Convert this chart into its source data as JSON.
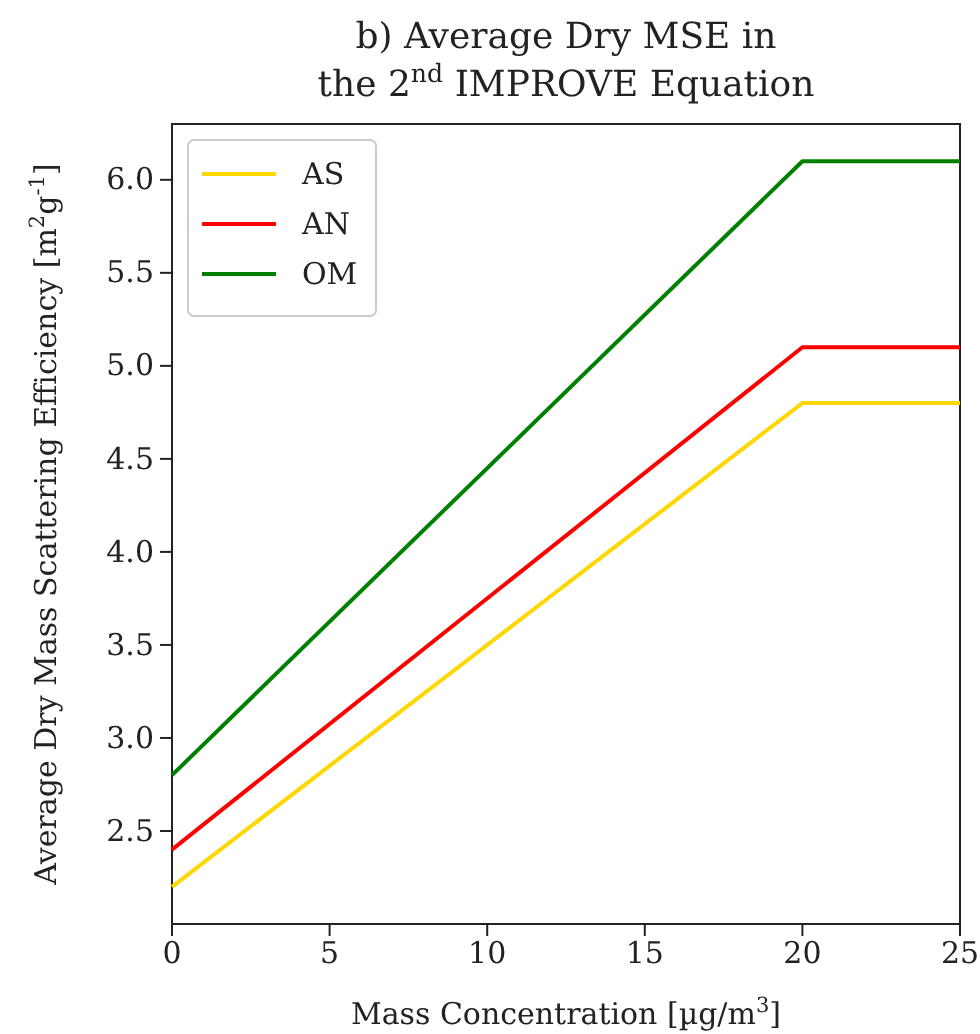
{
  "chart_data": {
    "type": "line",
    "title": "b) Average Dry MSE in\nthe 2$^{nd}$ IMPROVE Equation",
    "xlabel": "Mass Concentration [µg/m$^{3}$]",
    "ylabel": "Average Dry Mass Scattering Efficiency [m$^{2}$g$^{-1}$]",
    "x": [
      0,
      20,
      25
    ],
    "series": [
      {
        "name": "AS",
        "color": "#ffd700",
        "values": [
          2.2,
          4.8,
          4.8
        ]
      },
      {
        "name": "AN",
        "color": "#ff0000",
        "values": [
          2.4,
          5.1,
          5.1
        ]
      },
      {
        "name": "OM",
        "color": "#008000",
        "values": [
          2.8,
          6.1,
          6.1
        ]
      }
    ],
    "xlim": [
      0,
      25
    ],
    "xticks": [
      0,
      5,
      10,
      15,
      20,
      25
    ],
    "ylim": [
      2.0,
      6.3
    ],
    "yticks": [
      2.5,
      {
        "value": 3,
        "label": "3.0"
      },
      3.5,
      {
        "value": 4,
        "label": "4.0"
      },
      4.5,
      {
        "value": 5,
        "label": "5.0"
      },
      5.5,
      {
        "value": 6,
        "label": "6.0"
      }
    ],
    "grid": false,
    "legend": "top left",
    "marker": "none",
    "line_style": "solid"
  }
}
